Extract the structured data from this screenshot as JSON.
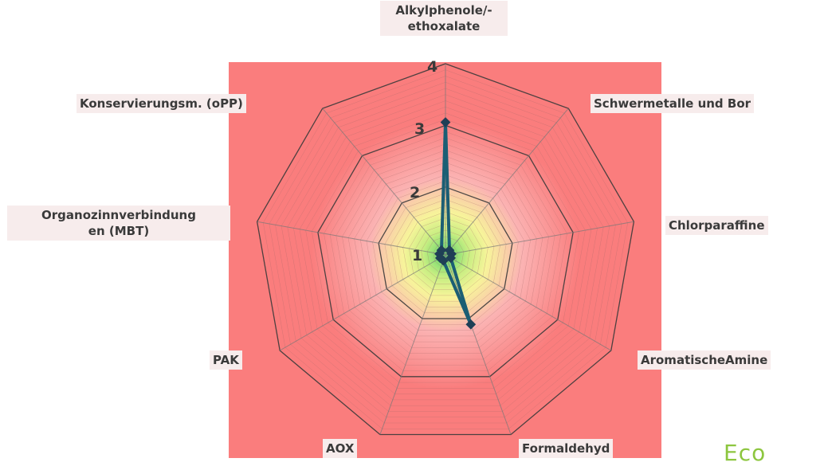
{
  "colors": {
    "background": "#fa7d7d",
    "series_line": "#1b5e74",
    "series_marker": "#1f3f56",
    "grid": "#555555",
    "center_gradient": [
      "#5ad46a",
      "#c8ee82",
      "#f7f49a",
      "#fbb3b3",
      "#fa7d7d"
    ]
  },
  "brand_text": "Eco",
  "chart_data": {
    "type": "radar",
    "axes": [
      "Alkylphenole/-\nethoxalate",
      "Schwermetalle und Bor",
      "Chlorparaffine",
      "AromatischeAmine",
      "Formaldehyd",
      "AOX",
      "PAK",
      "Organozinnverbindung\nen (MBT)",
      "Konservierungsm. (oPP)"
    ],
    "r_range": [
      0.9,
      4
    ],
    "ticks": [
      "1",
      "2",
      "3",
      "4"
    ],
    "tick_values": [
      1,
      2,
      3,
      4
    ],
    "series": [
      {
        "values": [
          3.05,
          1,
          1,
          1,
          2.1,
          1,
          1,
          1,
          1
        ]
      }
    ],
    "grid": true,
    "legend": "none"
  }
}
